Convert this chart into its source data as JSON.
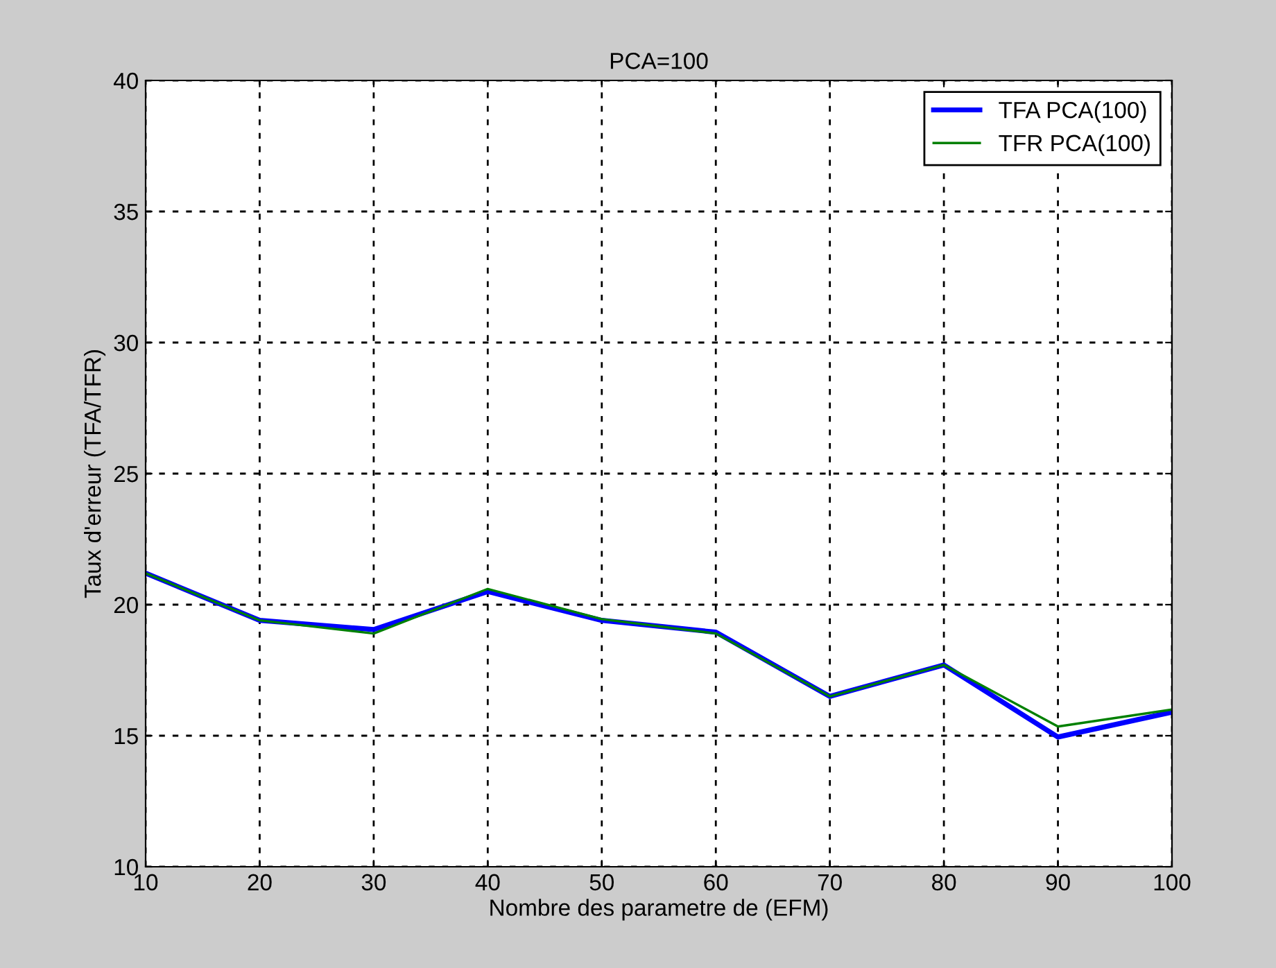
{
  "chart_data": {
    "type": "line",
    "title": "PCA=100",
    "xlabel": "Nombre des parametre de (EFM)",
    "ylabel": "Taux d'erreur (TFA/TFR)",
    "x": [
      10,
      20,
      30,
      40,
      50,
      60,
      70,
      80,
      90,
      100
    ],
    "series": [
      {
        "name": "TFA PCA(100)",
        "color": "#0000ff",
        "values": [
          21.2,
          19.4,
          19.05,
          20.5,
          19.4,
          18.95,
          16.5,
          17.7,
          14.95,
          15.9
        ]
      },
      {
        "name": "TFR PCA(100)",
        "color": "#008000",
        "values": [
          21.2,
          19.4,
          18.9,
          20.6,
          19.45,
          18.9,
          16.5,
          17.7,
          15.35,
          16.0
        ]
      }
    ],
    "xlim": [
      10,
      100
    ],
    "xticks": [
      10,
      20,
      30,
      40,
      50,
      60,
      70,
      80,
      90,
      100
    ],
    "ylim": [
      10,
      40
    ],
    "yticks": [
      10,
      15,
      20,
      25,
      30,
      35,
      40
    ],
    "grid": true,
    "legend": "top right",
    "line_style": "solid",
    "marker": "none"
  }
}
